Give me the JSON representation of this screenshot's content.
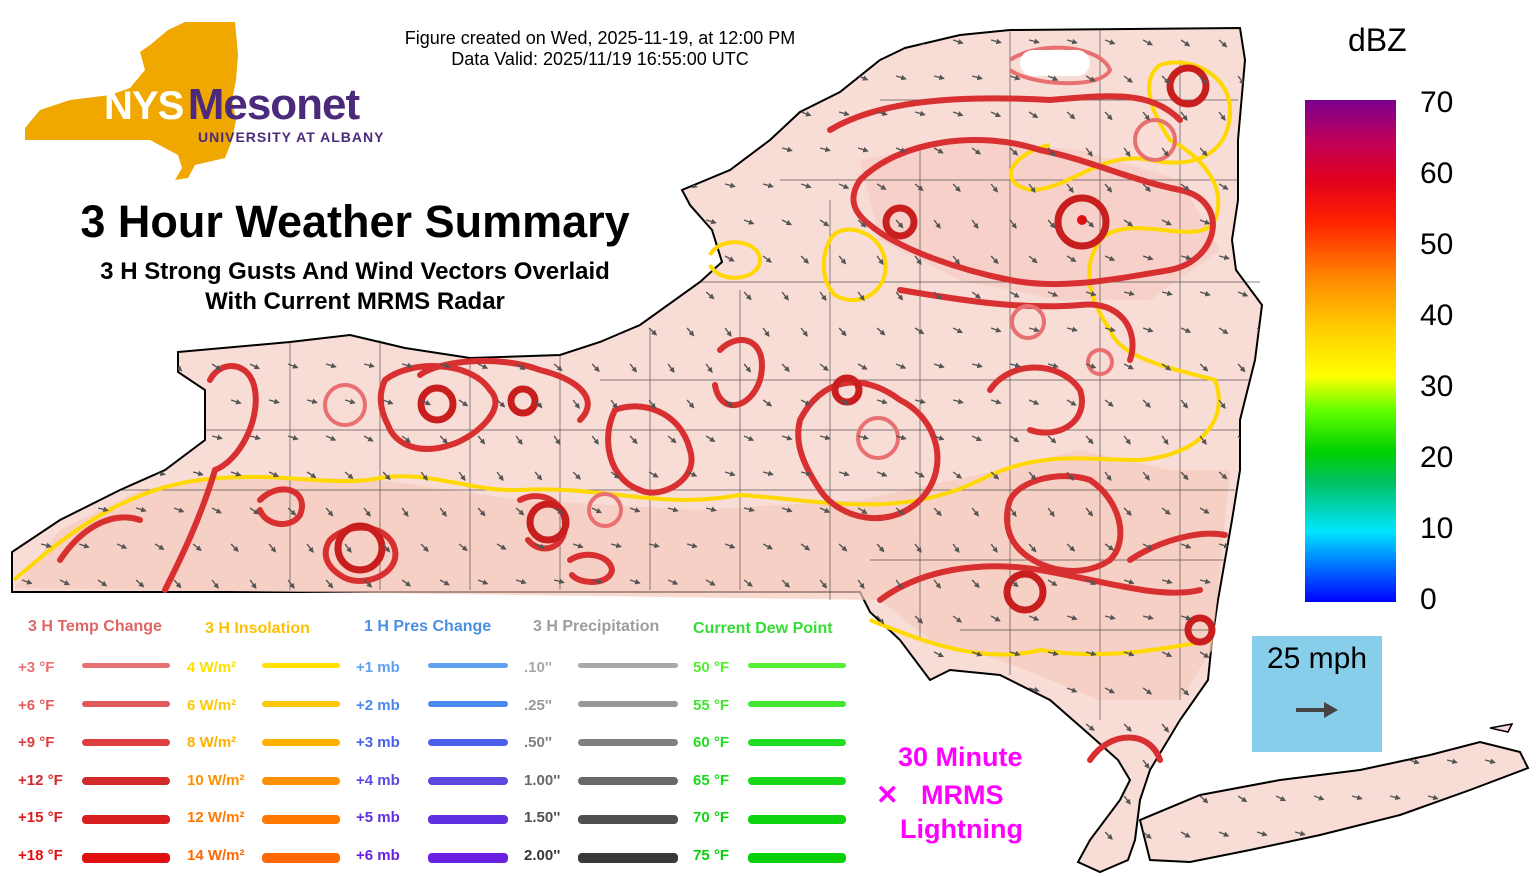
{
  "header": {
    "created": "Figure created on Wed, 2025-11-19, at 12:00 PM",
    "valid": "Data Valid: 2025/11/19 16:55:00 UTC"
  },
  "logo": {
    "word1": "NYS",
    "word2": "Mesonet",
    "org": "UNIVERSITY AT ALBANY"
  },
  "title": {
    "main": "3 Hour Weather Summary",
    "sub1": "3 H Strong Gusts And Wind Vectors Overlaid",
    "sub2": "With Current MRMS Radar"
  },
  "colorbar": {
    "title": "dBZ",
    "ticks": [
      "70",
      "60",
      "50",
      "40",
      "30",
      "20",
      "10",
      "0"
    ]
  },
  "wind_scale": {
    "label": "25 mph",
    "arrow_icon": "right-arrow-icon"
  },
  "lightning": {
    "marker": "✕",
    "line1": "30 Minute",
    "line2": "MRMS",
    "line3": "Lightning"
  },
  "legend": {
    "temp": {
      "title": "3 H Temp Change",
      "title_color": "#e06666",
      "items": [
        {
          "label": "+3 °F",
          "color": "#e87070"
        },
        {
          "label": "+6 °F",
          "color": "#e25a5a"
        },
        {
          "label": "+9 °F",
          "color": "#dc4040"
        },
        {
          "label": "+12 °F",
          "color": "#d22a2a"
        },
        {
          "label": "+15 °F",
          "color": "#d81e1e"
        },
        {
          "label": "+18 °F",
          "color": "#e01010"
        }
      ]
    },
    "insolation": {
      "title": "3 H Insolation",
      "title_color": "#ffc000",
      "items": [
        {
          "label": "4 W/m²",
          "color": "#ffe000"
        },
        {
          "label": "6 W/m²",
          "color": "#ffc800"
        },
        {
          "label": "8 W/m²",
          "color": "#ffb000"
        },
        {
          "label": "10 W/m²",
          "color": "#ff9000"
        },
        {
          "label": "12 W/m²",
          "color": "#ff7800"
        },
        {
          "label": "14 W/m²",
          "color": "#ff6800"
        }
      ]
    },
    "pressure": {
      "title": "1 H Pres Change",
      "title_color": "#4a90e2",
      "items": [
        {
          "label": "+1 mb",
          "color": "#60a0f0"
        },
        {
          "label": "+2 mb",
          "color": "#4a88f0"
        },
        {
          "label": "+3 mb",
          "color": "#4a60e8"
        },
        {
          "label": "+4 mb",
          "color": "#5a48e0"
        },
        {
          "label": "+5 mb",
          "color": "#6030e0"
        },
        {
          "label": "+6 mb",
          "color": "#6a20e0"
        }
      ]
    },
    "precip": {
      "title": "3 H Precipitation",
      "title_color": "#9e9e9e",
      "items": [
        {
          "label": ".10''",
          "color": "#a8a8a8"
        },
        {
          "label": ".25''",
          "color": "#989898"
        },
        {
          "label": ".50''",
          "color": "#808080"
        },
        {
          "label": "1.00''",
          "color": "#686868"
        },
        {
          "label": "1.50''",
          "color": "#505050"
        },
        {
          "label": "2.00''",
          "color": "#383838"
        }
      ]
    },
    "dewpoint": {
      "title": "Current Dew Point",
      "title_color": "#33dd33",
      "items": [
        {
          "label": "50 °F",
          "color": "#55ee33"
        },
        {
          "label": "55 °F",
          "color": "#40e630"
        },
        {
          "label": "60 °F",
          "color": "#22dd22"
        },
        {
          "label": "65 °F",
          "color": "#18d818"
        },
        {
          "label": "70 °F",
          "color": "#10d410"
        },
        {
          "label": "75 °F",
          "color": "#08d008"
        }
      ]
    }
  },
  "colors": {
    "logo_state": "#f0a800",
    "logo_mesonet": "#4b2a7b",
    "map_fill": "#f8dcd6",
    "gust_line": "#d83030",
    "insolation_line": "#ffd800",
    "wind_arrow": "#555555",
    "scale_box": "#87ceeb",
    "lightning": "#ff00ff"
  }
}
